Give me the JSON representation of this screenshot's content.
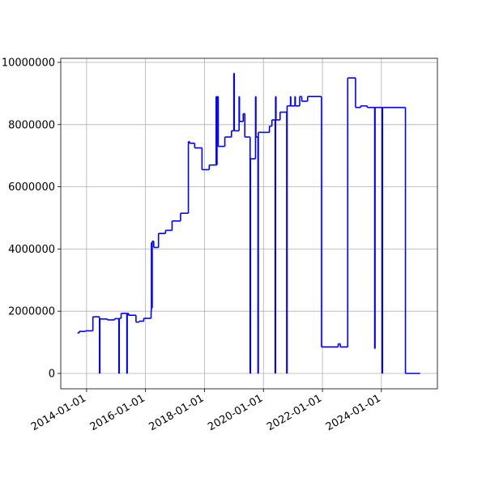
{
  "chart_data": {
    "type": "line",
    "drawstyle": "steps-post",
    "color": "blue",
    "grid": true,
    "x": [
      "2013-09-10",
      "2013-10-01",
      "2013-12-20",
      "2014-03-20",
      "2014-06-10",
      "2014-06-15",
      "2014-09-15",
      "2014-12-15",
      "2015-02-05",
      "2015-02-10",
      "2015-03-05",
      "2015-05-15",
      "2015-05-20",
      "2015-06-05",
      "2015-09-05",
      "2015-10-15",
      "2015-12-10",
      "2016-03-10",
      "2016-03-14",
      "2016-03-18",
      "2016-03-24",
      "2016-04-12",
      "2016-06-10",
      "2016-09-05",
      "2016-11-25",
      "2017-03-10",
      "2017-06-15",
      "2017-07-01",
      "2017-09-01",
      "2017-12-01",
      "2018-03-01",
      "2018-05-25",
      "2018-05-30",
      "2018-06-05",
      "2018-06-20",
      "2018-09-10",
      "2018-12-01",
      "2018-12-30",
      "2019-01-05",
      "2019-03-05",
      "2019-03-10",
      "2019-04-25",
      "2019-05-15",
      "2019-07-20",
      "2019-07-25",
      "2019-09-25",
      "2019-09-30",
      "2019-10-25",
      "2019-10-30",
      "2020-03-15",
      "2020-04-15",
      "2020-05-25",
      "2020-05-30",
      "2020-06-05",
      "2020-07-25",
      "2020-10-15",
      "2020-10-20",
      "2020-12-01",
      "2020-12-05",
      "2021-01-25",
      "2021-01-30",
      "2021-03-25",
      "2021-04-20",
      "2021-07-01",
      "2021-12-20",
      "2022-07-15",
      "2022-08-10",
      "2022-11-10",
      "2023-02-15",
      "2023-04-20",
      "2023-07-10",
      "2023-10-10",
      "2023-10-15",
      "2024-01-10",
      "2024-01-15",
      "2024-10-25",
      "2025-04-25"
    ],
    "values": [
      1300000,
      1350000,
      1370000,
      1820000,
      0,
      1750000,
      1720000,
      1760000,
      0,
      1770000,
      1930000,
      0,
      1930000,
      1870000,
      1650000,
      1680000,
      1770000,
      2000000,
      4200000,
      2100000,
      4250000,
      4050000,
      4500000,
      4600000,
      4900000,
      5150000,
      7450000,
      7400000,
      7250000,
      6550000,
      6700000,
      8900000,
      6700000,
      8900000,
      7300000,
      7600000,
      7800000,
      9650000,
      7800000,
      8900000,
      8100000,
      8350000,
      7600000,
      0,
      6900000,
      8900000,
      7600000,
      0,
      7750000,
      7950000,
      8150000,
      0,
      8900000,
      8150000,
      8400000,
      0,
      8600000,
      8900000,
      8600000,
      8900000,
      8600000,
      8900000,
      8750000,
      8900000,
      850000,
      950000,
      850000,
      9500000,
      8550000,
      8600000,
      8550000,
      800000,
      8550000,
      0,
      8550000,
      0,
      0
    ],
    "xlim": [
      "2013-02-15",
      "2025-11-25"
    ],
    "xticks": [
      "2014-01-01",
      "2016-01-01",
      "2018-01-01",
      "2020-01-01",
      "2022-01-01",
      "2024-01-01"
    ],
    "ylim": [
      -495000,
      10130000
    ],
    "yticks": [
      0,
      2000000,
      4000000,
      6000000,
      8000000,
      10000000
    ]
  }
}
